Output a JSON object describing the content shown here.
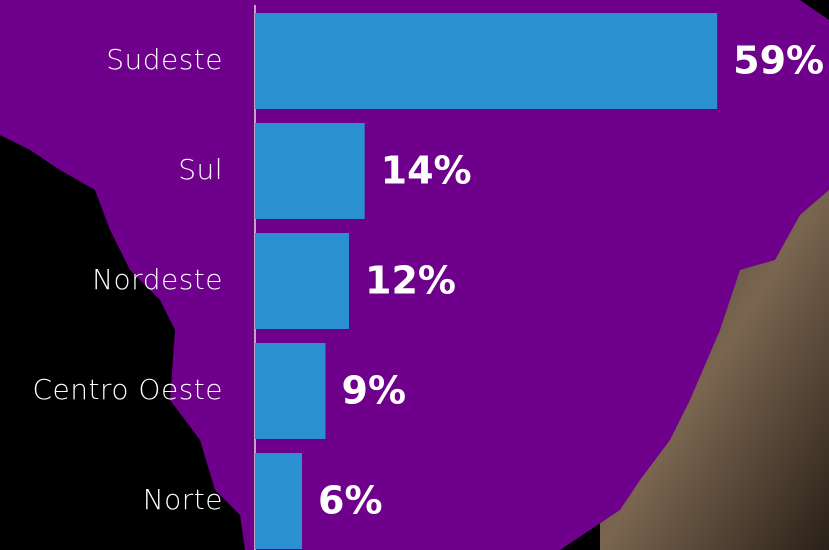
{
  "chart_data": {
    "type": "bar",
    "orientation": "horizontal",
    "categories": [
      "Sudeste",
      "Sul",
      "Nordeste",
      "Centro Oeste",
      "Norte"
    ],
    "values": [
      59,
      14,
      12,
      9,
      6
    ],
    "value_labels": [
      "59%",
      "14%",
      "12%",
      "9%",
      "6%"
    ],
    "color": "#2a90d0",
    "xlim": [
      0,
      60
    ]
  }
}
